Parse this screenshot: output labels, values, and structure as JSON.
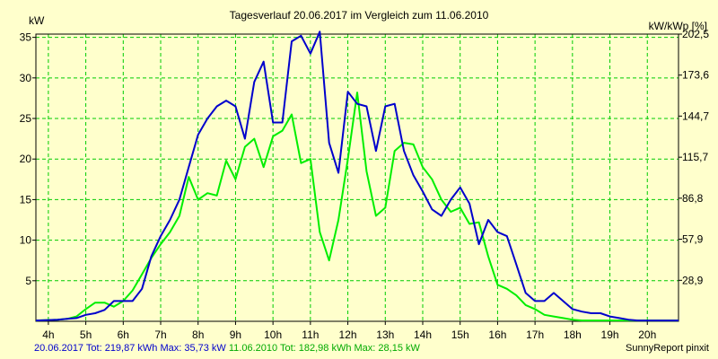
{
  "chart_data": {
    "type": "line",
    "title": "Tagesverlauf 20.06.2017 im Vergleich zum 11.06.2010",
    "ylabel": "kW",
    "y2label": "kW/kWp [%]",
    "xlim": [
      3.667,
      20.833
    ],
    "ylim": [
      0,
      35.4
    ],
    "y2lim": [
      0,
      202.5
    ],
    "x_ticks": [
      4,
      5,
      6,
      7,
      8,
      9,
      10,
      11,
      12,
      13,
      14,
      15,
      16,
      17,
      18,
      19,
      20
    ],
    "x_tick_labels": [
      "4h",
      "5h",
      "6h",
      "7h",
      "8h",
      "9h",
      "10h",
      "11h",
      "12h",
      "13h",
      "14h",
      "15h",
      "16h",
      "17h",
      "18h",
      "19h",
      "20h"
    ],
    "y_ticks": [
      5,
      10,
      15,
      20,
      25,
      30,
      35
    ],
    "y_tick_labels": [
      "5",
      "10",
      "15",
      "20",
      "25",
      "30",
      "35"
    ],
    "y2_ticks": [
      28.9,
      57.9,
      86.8,
      115.7,
      144.7,
      173.6,
      202.5
    ],
    "y2_tick_labels": [
      "28,9",
      "57,9",
      "86,8",
      "115,7",
      "144,7",
      "173,6",
      "202,5"
    ],
    "grid": true,
    "series": [
      {
        "name": "20.06.2017",
        "color": "#0000cc",
        "x": [
          3.667,
          4.25,
          4.5,
          4.75,
          5,
          5.25,
          5.5,
          5.75,
          6,
          6.25,
          6.5,
          6.75,
          7,
          7.25,
          7.5,
          7.75,
          8,
          8.25,
          8.5,
          8.75,
          9,
          9.25,
          9.5,
          9.75,
          10,
          10.25,
          10.5,
          10.75,
          11,
          11.25,
          11.5,
          11.75,
          12,
          12.25,
          12.5,
          12.75,
          13,
          13.25,
          13.5,
          13.75,
          14,
          14.25,
          14.5,
          14.75,
          15,
          15.25,
          15.5,
          15.75,
          16,
          16.25,
          16.5,
          16.75,
          17,
          17.25,
          17.5,
          17.75,
          18,
          18.25,
          18.5,
          18.75,
          19,
          19.25,
          19.5,
          19.75,
          20,
          20.25,
          20.5,
          20.833
        ],
        "values": [
          0.1,
          0.2,
          0.3,
          0.4,
          0.8,
          1.0,
          1.4,
          2.5,
          2.5,
          2.5,
          4.0,
          8.0,
          10.5,
          12.5,
          15.0,
          19.0,
          23.0,
          25.0,
          26.5,
          27.2,
          26.5,
          22.5,
          29.5,
          32.0,
          24.5,
          24.5,
          34.5,
          35.2,
          33.0,
          35.7,
          22.0,
          18.3,
          28.3,
          26.8,
          26.5,
          21.0,
          26.5,
          26.8,
          21.0,
          18.0,
          16.0,
          13.8,
          13.0,
          15.0,
          16.5,
          14.5,
          9.5,
          12.5,
          11.0,
          10.5,
          7.0,
          3.5,
          2.5,
          2.5,
          3.5,
          2.5,
          1.5,
          1.2,
          1.0,
          1.0,
          0.6,
          0.4,
          0.2,
          0.1,
          0.1,
          0.1,
          0.1,
          0.1
        ]
      },
      {
        "name": "11.06.2010",
        "color": "#00ee00",
        "x": [
          3.667,
          4.25,
          4.5,
          4.75,
          5,
          5.25,
          5.5,
          5.75,
          6,
          6.25,
          6.5,
          6.75,
          7,
          7.25,
          7.5,
          7.75,
          8,
          8.25,
          8.5,
          8.75,
          9,
          9.25,
          9.5,
          9.75,
          10,
          10.25,
          10.5,
          10.75,
          11,
          11.25,
          11.5,
          11.75,
          12,
          12.25,
          12.5,
          12.75,
          13,
          13.25,
          13.5,
          13.75,
          14,
          14.25,
          14.5,
          14.75,
          15,
          15.25,
          15.5,
          15.75,
          16,
          16.25,
          16.5,
          16.75,
          17,
          17.25,
          17.5,
          17.75,
          18,
          18.25,
          18.5,
          18.75,
          19,
          19.25,
          19.5,
          19.75,
          20,
          20.25,
          20.5,
          20.833
        ],
        "values": [
          0.1,
          0.2,
          0.3,
          0.6,
          1.5,
          2.3,
          2.3,
          1.8,
          2.5,
          3.8,
          5.8,
          7.8,
          9.5,
          11.0,
          13.0,
          17.8,
          15.0,
          15.8,
          15.5,
          19.8,
          17.5,
          21.5,
          22.5,
          19.0,
          22.8,
          23.5,
          25.5,
          19.5,
          20.0,
          11.0,
          7.5,
          12.5,
          20.0,
          28.2,
          18.5,
          13.0,
          14.0,
          21.0,
          22.0,
          21.8,
          19.0,
          17.5,
          15.0,
          13.5,
          14.0,
          12.0,
          12.2,
          8.0,
          4.5,
          4.0,
          3.2,
          2.0,
          1.5,
          0.8,
          0.6,
          0.4,
          0.2,
          0.1,
          0.1,
          0.1,
          0.1,
          0.1,
          0.1,
          0.1,
          0.1,
          0.1,
          0.1,
          0.1
        ]
      }
    ]
  },
  "footer": {
    "series1_text": "20.06.2017 Tot: 219,87 kWh Max: 35,73 kW",
    "series2_text": "11.06.2010 Tot: 182,98 kWh Max: 28,15 kW"
  },
  "credit": "SunnyReport pinxit"
}
